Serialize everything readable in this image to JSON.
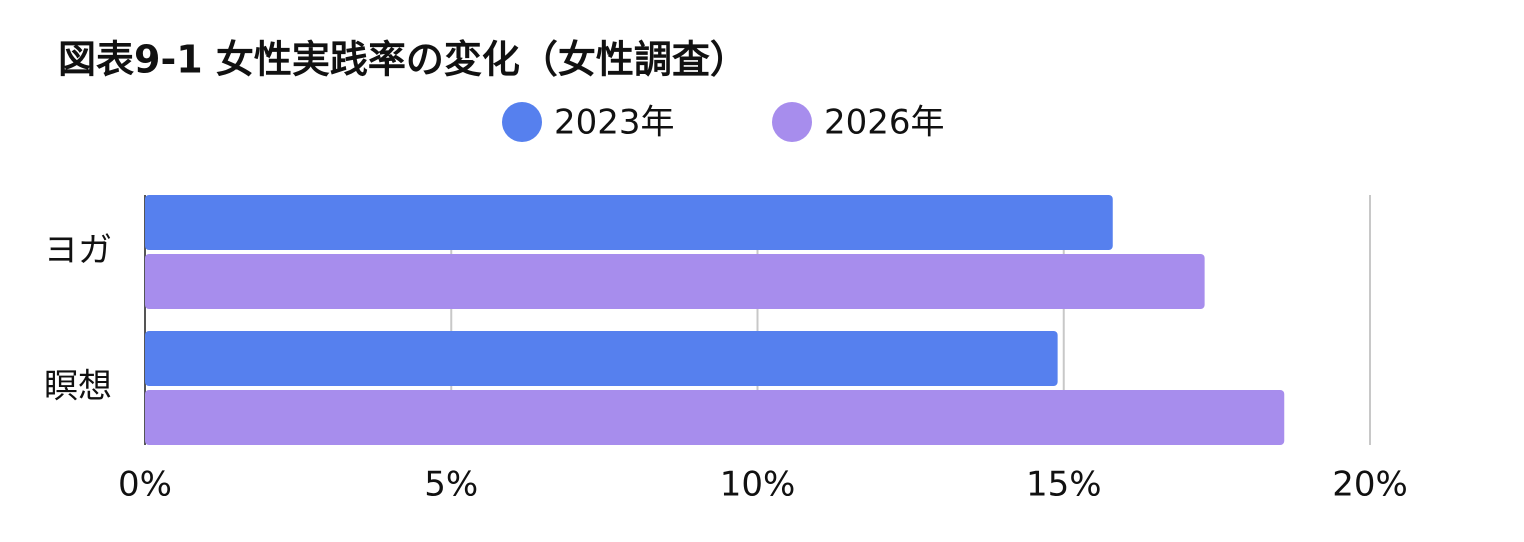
{
  "chart_data": {
    "type": "hbar",
    "title": "図表9-1 女性実践率の変化（女性調査）",
    "categories": [
      "ヨガ",
      "瞑想"
    ],
    "series": [
      {
        "name": "2023年",
        "color": "#5680ee",
        "values": [
          15.8,
          14.9
        ]
      },
      {
        "name": "2026年",
        "color": "#a78ded",
        "values": [
          17.3,
          18.6
        ]
      }
    ],
    "xlim": [
      0,
      20
    ],
    "xticks": [
      {
        "value": 0,
        "label": "0%"
      },
      {
        "value": 5,
        "label": "5%"
      },
      {
        "value": 10,
        "label": "10%"
      },
      {
        "value": 15,
        "label": "15%"
      },
      {
        "value": 20,
        "label": "20%"
      }
    ],
    "grid": true,
    "legend": "top"
  }
}
